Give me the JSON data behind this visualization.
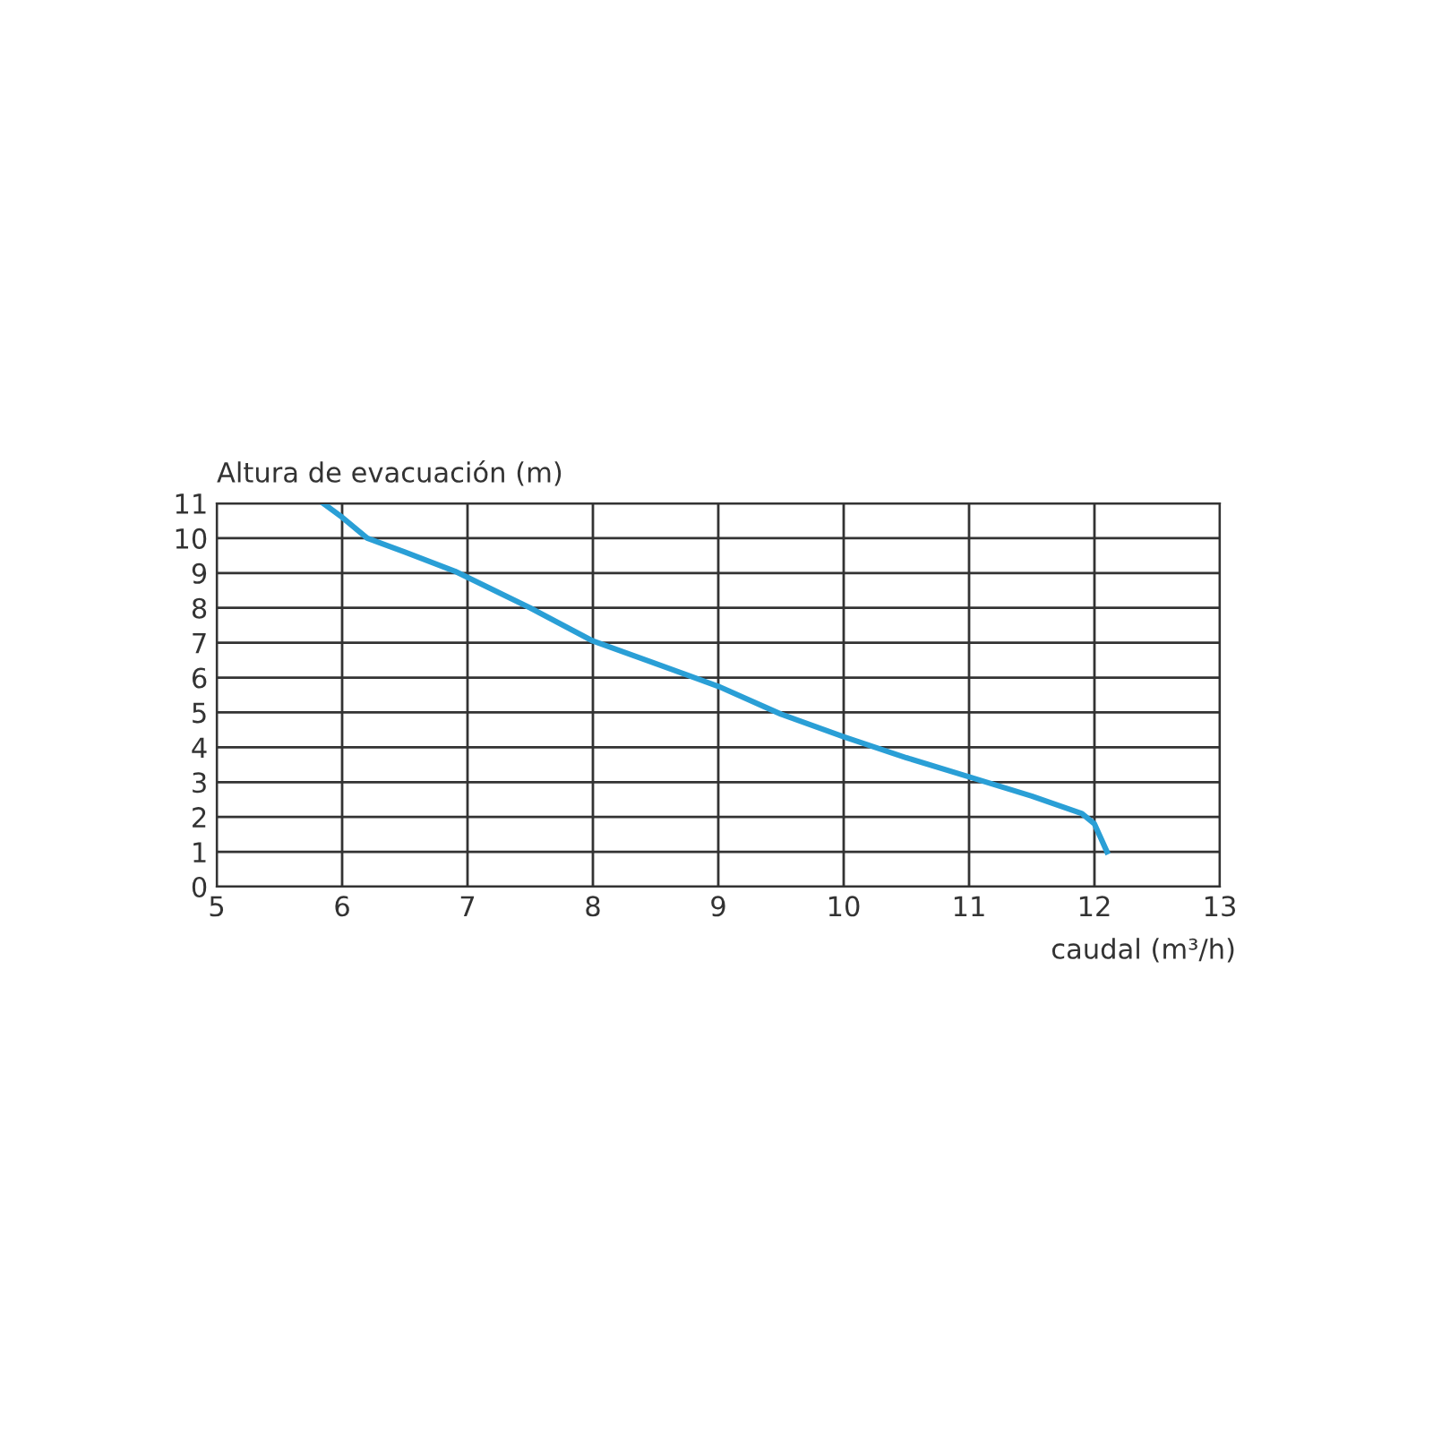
{
  "chart_data": {
    "type": "line",
    "xlabel": "caudal (m³/h)",
    "ylabel": "Altura de evacuación (m)",
    "x": [
      5.85,
      6.0,
      6.2,
      6.5,
      6.9,
      7.5,
      8.0,
      8.5,
      9.0,
      9.5,
      10.0,
      10.5,
      11.0,
      11.5,
      11.9,
      12.0,
      12.1
    ],
    "series": [
      {
        "color": "#2a9fd6",
        "values": [
          11,
          10.6,
          10.0,
          9.6,
          9.05,
          8.0,
          7.05,
          6.4,
          5.75,
          4.95,
          4.3,
          3.7,
          3.15,
          2.6,
          2.1,
          1.8,
          1.0
        ]
      }
    ],
    "xlim": [
      5,
      13
    ],
    "xticks": [
      5,
      6,
      7,
      8,
      9,
      10,
      11,
      12,
      13
    ],
    "ylim": [
      0,
      11
    ],
    "yticks": [
      0,
      1,
      2,
      3,
      4,
      5,
      6,
      7,
      8,
      9,
      10,
      11
    ],
    "grid": true,
    "line_style": "solid",
    "marker": "none"
  }
}
